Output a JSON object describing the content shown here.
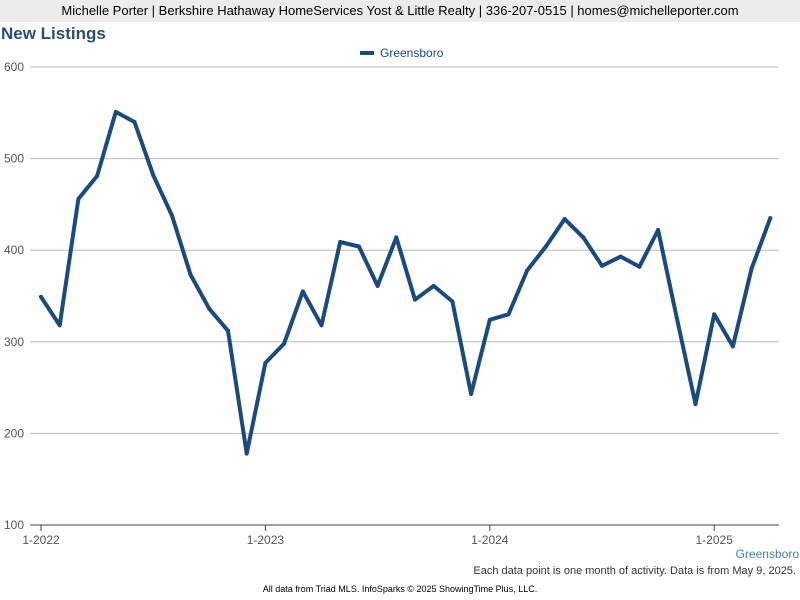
{
  "header": {
    "contact": "Michelle Porter | Berkshire Hathaway HomeServices Yost & Little Realty | 336-207-0515 | homes@michelleporter.com"
  },
  "chart_title": "New Listings",
  "legend_label": "Greensboro",
  "corner_label": "Greensboro",
  "note": "Each data point is one month of activity. Data is from May 9, 2025.",
  "footer": "All data from Triad MLS. InfoSparks © 2025 ShowingTime Plus, LLC.",
  "colors": {
    "line": "#1a4a7e",
    "grid": "#bbbbbb",
    "axis": "#444444"
  },
  "chart_data": {
    "type": "line",
    "title": "New Listings",
    "xlabel": "",
    "ylabel": "",
    "ylim": [
      100,
      600
    ],
    "y_ticks": [
      100,
      200,
      300,
      400,
      500,
      600
    ],
    "x_ticks": [
      {
        "label": "1-2022",
        "index": 0
      },
      {
        "label": "1-2023",
        "index": 12
      },
      {
        "label": "1-2024",
        "index": 24
      },
      {
        "label": "1-2025",
        "index": 36
      }
    ],
    "x": [
      "1-2022",
      "2-2022",
      "3-2022",
      "4-2022",
      "5-2022",
      "6-2022",
      "7-2022",
      "8-2022",
      "9-2022",
      "10-2022",
      "11-2022",
      "12-2022",
      "1-2023",
      "2-2023",
      "3-2023",
      "4-2023",
      "5-2023",
      "6-2023",
      "7-2023",
      "8-2023",
      "9-2023",
      "10-2023",
      "11-2023",
      "12-2023",
      "1-2024",
      "2-2024",
      "3-2024",
      "4-2024",
      "5-2024",
      "6-2024",
      "7-2024",
      "8-2024",
      "9-2024",
      "10-2024",
      "11-2024",
      "12-2024",
      "1-2025",
      "2-2025",
      "3-2025",
      "4-2025"
    ],
    "series": [
      {
        "name": "Greensboro",
        "values": [
          349,
          318,
          456,
          481,
          551,
          540,
          482,
          438,
          373,
          336,
          312,
          178,
          277,
          298,
          355,
          318,
          409,
          404,
          361,
          414,
          346,
          361,
          344,
          243,
          324,
          330,
          378,
          404,
          434,
          414,
          383,
          393,
          382,
          422,
          326,
          232,
          330,
          295,
          380,
          435
        ]
      }
    ],
    "grid": true,
    "legend_position": "top-center"
  }
}
